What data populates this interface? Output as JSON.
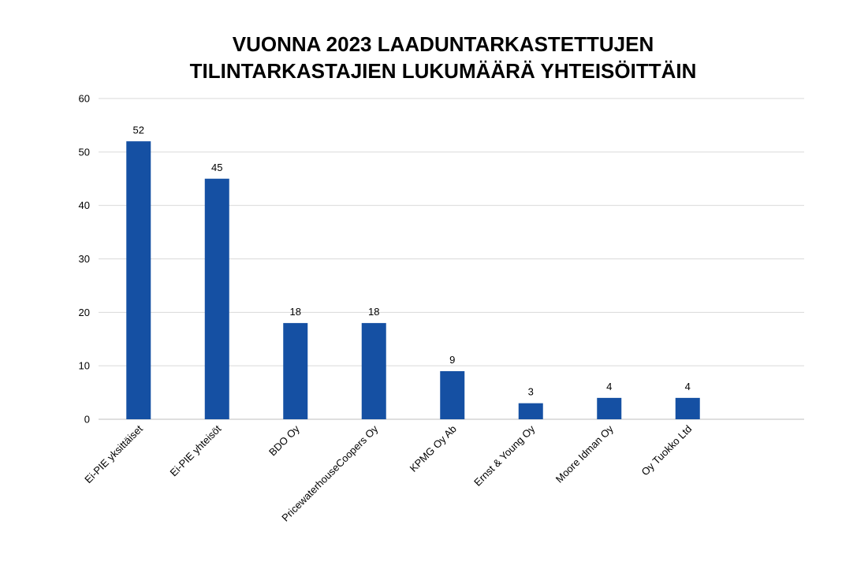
{
  "chart_data": {
    "type": "bar",
    "title": [
      "VUONNA 2023 LAADUNTARKASTETTUJEN",
      "TILINTARKASTAJIEN LUKUMÄÄRÄ YHTEISÖITTÄIN"
    ],
    "categories": [
      "Ei-PIE yksittäiset",
      "Ei-PIE yhteisöt",
      "BDO Oy",
      "PricewaterhouseCoopers Oy",
      "KPMG Oy Ab",
      "Ernst & Young Oy",
      "Moore Idman Oy",
      "Oy Tuokko Ltd"
    ],
    "values": [
      52,
      45,
      18,
      18,
      9,
      3,
      4,
      4
    ],
    "ylim": [
      0,
      60
    ],
    "yticks": [
      0,
      10,
      20,
      30,
      40,
      50,
      60
    ],
    "grid": true,
    "legend": "none",
    "bar_color": "#1550a3",
    "data_labels": true
  }
}
